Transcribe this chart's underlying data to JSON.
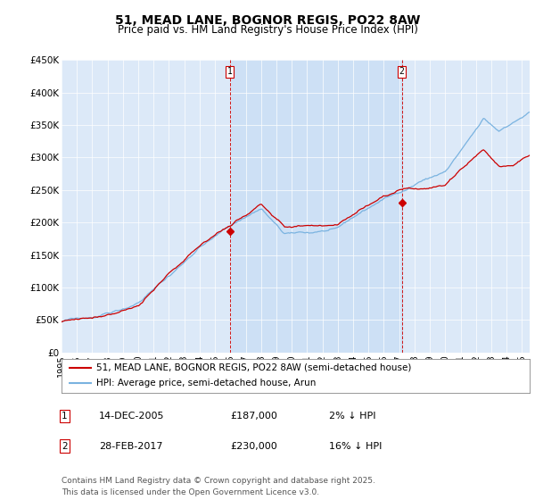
{
  "title": "51, MEAD LANE, BOGNOR REGIS, PO22 8AW",
  "subtitle": "Price paid vs. HM Land Registry's House Price Index (HPI)",
  "ylabel_ticks": [
    "£0",
    "£50K",
    "£100K",
    "£150K",
    "£200K",
    "£250K",
    "£300K",
    "£350K",
    "£400K",
    "£450K"
  ],
  "ytick_values": [
    0,
    50000,
    100000,
    150000,
    200000,
    250000,
    300000,
    350000,
    400000,
    450000
  ],
  "ylim": [
    0,
    450000
  ],
  "xlim_start": 1995.0,
  "xlim_end": 2025.5,
  "background_color": "#dce9f8",
  "highlight_color": "#c8ddf5",
  "hpi_color": "#7ab3e0",
  "price_color": "#cc0000",
  "marker1_x": 2005.96,
  "marker1_y": 187000,
  "marker1_label": "1",
  "marker1_date": "14-DEC-2005",
  "marker1_price": "£187,000",
  "marker1_hpi": "2% ↓ HPI",
  "marker2_x": 2017.17,
  "marker2_y": 230000,
  "marker2_label": "2",
  "marker2_date": "28-FEB-2017",
  "marker2_price": "£230,000",
  "marker2_hpi": "16% ↓ HPI",
  "legend_line1": "51, MEAD LANE, BOGNOR REGIS, PO22 8AW (semi-detached house)",
  "legend_line2": "HPI: Average price, semi-detached house, Arun",
  "footer": "Contains HM Land Registry data © Crown copyright and database right 2025.\nThis data is licensed under the Open Government Licence v3.0.",
  "title_fontsize": 10,
  "subtitle_fontsize": 8.5,
  "tick_fontsize": 7.5,
  "legend_fontsize": 7.5,
  "footer_fontsize": 6.5
}
